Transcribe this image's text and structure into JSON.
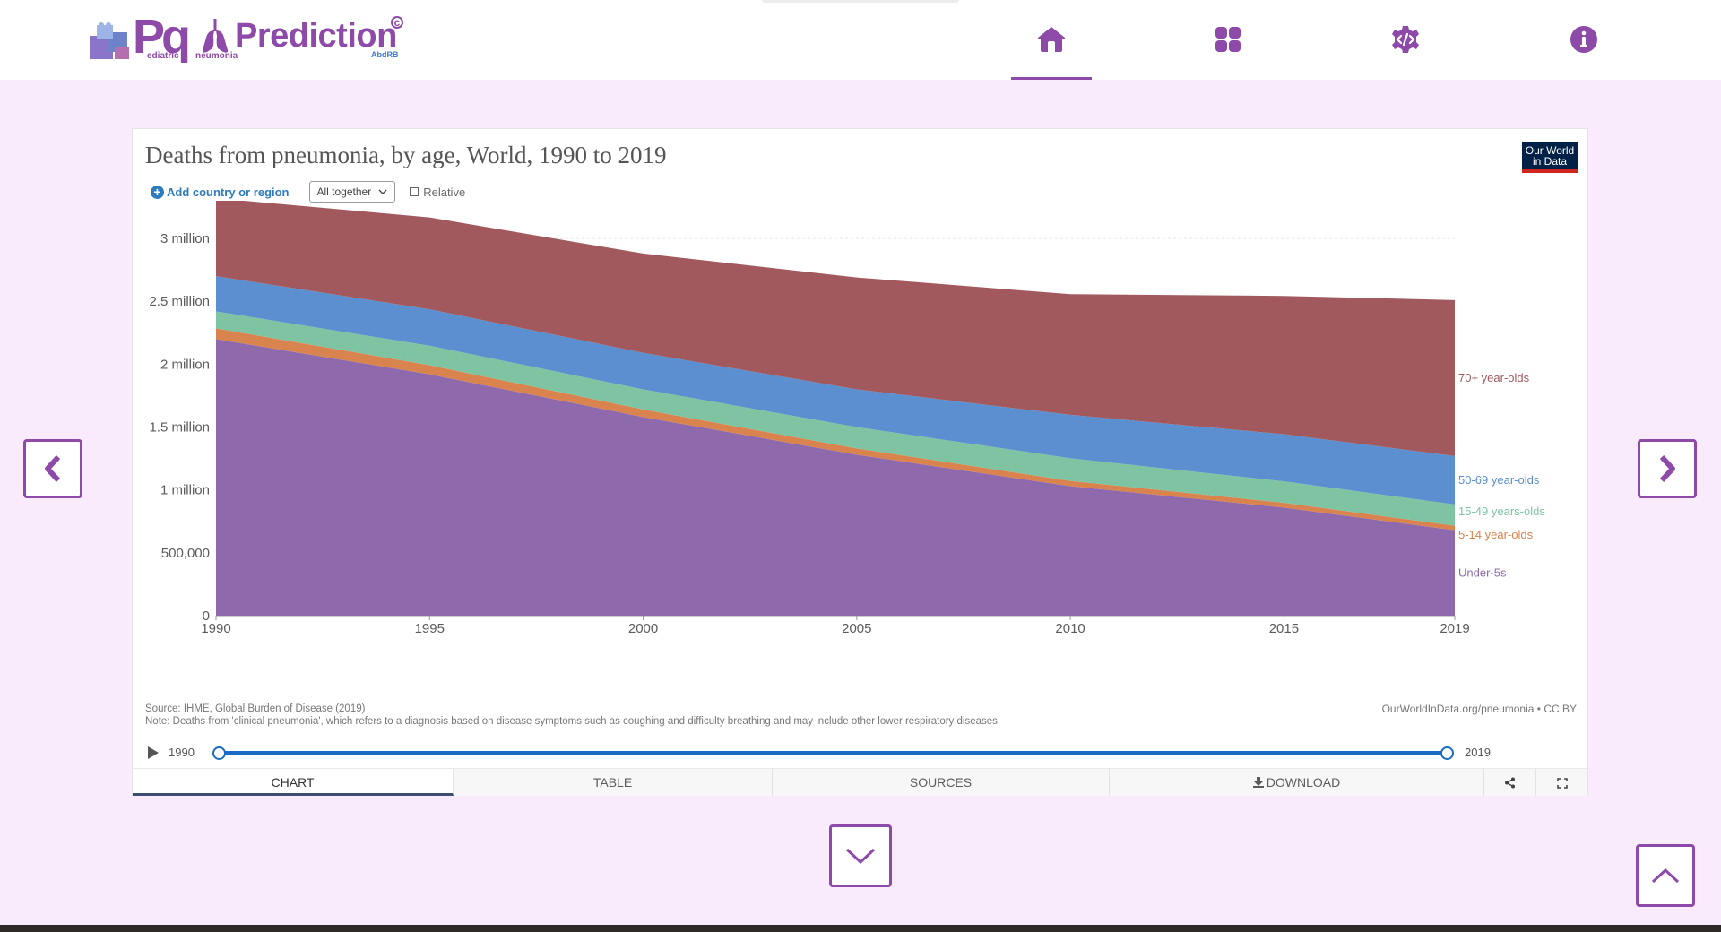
{
  "brand": {
    "logo_letters": "Pq",
    "logo_sub_a": "ediatric",
    "logo_sub_b": "neumonia",
    "name": "Prediction",
    "copyright_mark": "c",
    "author": "AbdRB"
  },
  "nav": {
    "active": "home",
    "items": [
      "home-icon",
      "grid-icon",
      "code-gear-icon",
      "info-icon"
    ],
    "accent_color": "#8e4aa8"
  },
  "chart_widget": {
    "title": "Deaths from pneumonia, by age, World, 1990 to 2019",
    "publisher_logo_line1": "Our World",
    "publisher_logo_line2": "in Data",
    "add_country_label": "Add country or region",
    "stack_mode_value": "All together",
    "relative_label": "Relative",
    "source": "Source: IHME, Global Burden of Disease (2019)",
    "note": "Note: Deaths from 'clinical pneumonia', which refers to a diagnosis based on disease symptoms such as coughing and difficulty breathing and may include other lower respiratory diseases.",
    "url_credit": "OurWorldInData.org/pneumonia • CC BY",
    "timeline_start": "1990",
    "timeline_end": "2019",
    "tabs": {
      "chart": "CHART",
      "table": "TABLE",
      "sources": "SOURCES",
      "download": "DOWNLOAD"
    }
  },
  "chart_data": {
    "type": "area",
    "stacked": true,
    "title": "Deaths from pneumonia, by age, World, 1990 to 2019",
    "x": [
      1990,
      1995,
      2000,
      2005,
      2010,
      2015,
      2019
    ],
    "x_tick_labels": [
      "1990",
      "1995",
      "2000",
      "2005",
      "2010",
      "2015",
      "2019"
    ],
    "y_tick_values": [
      0,
      500000,
      1000000,
      1500000,
      2000000,
      2500000,
      3000000
    ],
    "y_tick_labels": [
      "0",
      "500,000",
      "1 million",
      "1.5 million",
      "2 million",
      "2.5 million",
      "3 million"
    ],
    "ylim": [
      0,
      3300000
    ],
    "grid": "horizontal",
    "legend": "right, inline labels",
    "series": [
      {
        "name": "Under-5s",
        "color": "#8e6aac",
        "values": [
          2200000,
          1920000,
          1580000,
          1280000,
          1030000,
          860000,
          680000
        ]
      },
      {
        "name": "5-14 year-olds",
        "color": "#d9834e",
        "values": [
          85000,
          72000,
          60000,
          50000,
          42000,
          38000,
          35000
        ]
      },
      {
        "name": "15-49 years-olds",
        "color": "#7fc4a2",
        "values": [
          135000,
          155000,
          160000,
          170000,
          180000,
          170000,
          170000
        ]
      },
      {
        "name": "50-69 year-olds",
        "color": "#5b8fcf",
        "values": [
          280000,
          290000,
          290000,
          300000,
          345000,
          375000,
          385000
        ]
      },
      {
        "name": "70+ year-olds",
        "color": "#a2595e",
        "values": [
          620000,
          730000,
          790000,
          890000,
          960000,
          1100000,
          1240000
        ]
      }
    ]
  }
}
